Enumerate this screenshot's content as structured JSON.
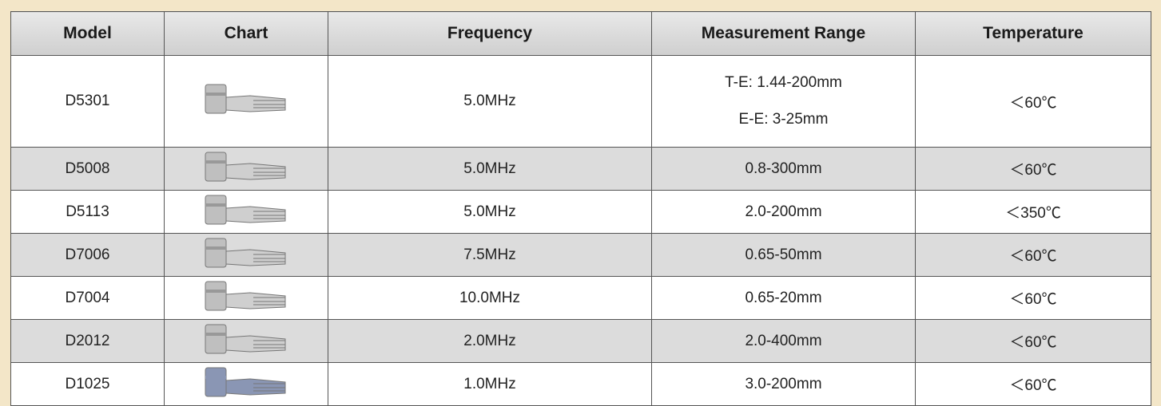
{
  "table": {
    "header": [
      "Model",
      "Chart",
      "Frequency",
      "Measurement Range",
      "Temperature"
    ],
    "rows": [
      {
        "model": "D5301",
        "frequency": "5.0MHz",
        "range": [
          "T-E: 1.44-200mm",
          "E-E: 3-25mm"
        ],
        "temperature": "＜60℃"
      },
      {
        "model": "D5008",
        "frequency": "5.0MHz",
        "range": [
          "0.8-300mm"
        ],
        "temperature": "＜60℃"
      },
      {
        "model": "D5113",
        "frequency": "5.0MHz",
        "range": [
          "2.0-200mm"
        ],
        "temperature": "＜350℃"
      },
      {
        "model": "D7006",
        "frequency": "7.5MHz",
        "range": [
          "0.65-50mm"
        ],
        "temperature": "＜60℃"
      },
      {
        "model": "D7004",
        "frequency": "10.0MHz",
        "range": [
          "0.65-20mm"
        ],
        "temperature": "＜60℃"
      },
      {
        "model": "D2012",
        "frequency": "2.0MHz",
        "range": [
          "2.0-400mm"
        ],
        "temperature": "＜60℃"
      },
      {
        "model": "D1025",
        "frequency": "1.0MHz",
        "range": [
          "3.0-200mm"
        ],
        "temperature": "＜60℃"
      }
    ]
  }
}
